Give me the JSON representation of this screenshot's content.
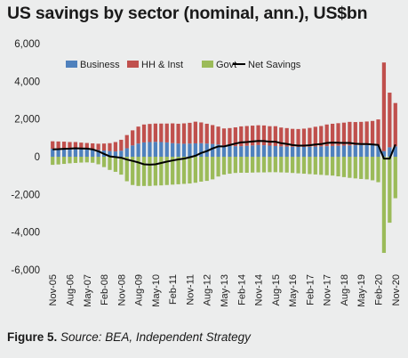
{
  "chart_data": {
    "type": "bar",
    "title": "US savings by sector (nominal, ann.), US$bn",
    "xlabel": "",
    "ylabel": "",
    "ylim": [
      -6000,
      6000
    ],
    "yticks": [
      -6000,
      -4000,
      -2000,
      0,
      2000,
      4000,
      6000
    ],
    "ytick_labels": [
      "-6,000",
      "-4,000",
      "-2,000",
      "0",
      "2,000",
      "4,000",
      "6,000"
    ],
    "xtick_labels": [
      "Nov-05",
      "Aug-06",
      "May-07",
      "Feb-08",
      "Nov-08",
      "Aug-09",
      "May-10",
      "Feb-11",
      "Nov-11",
      "Aug-12",
      "May-13",
      "Feb-14",
      "Nov-14",
      "Aug-15",
      "May-16",
      "Feb-17",
      "Nov-17",
      "Aug-18",
      "May-19",
      "Feb-20",
      "Nov-20"
    ],
    "categories": [
      "Q4-05",
      "Q1-06",
      "Q2-06",
      "Q3-06",
      "Q4-06",
      "Q1-07",
      "Q2-07",
      "Q3-07",
      "Q4-07",
      "Q1-08",
      "Q2-08",
      "Q3-08",
      "Q4-08",
      "Q1-09",
      "Q2-09",
      "Q3-09",
      "Q4-09",
      "Q1-10",
      "Q2-10",
      "Q3-10",
      "Q4-10",
      "Q1-11",
      "Q2-11",
      "Q3-11",
      "Q4-11",
      "Q1-12",
      "Q2-12",
      "Q3-12",
      "Q4-12",
      "Q1-13",
      "Q2-13",
      "Q3-13",
      "Q4-13",
      "Q1-14",
      "Q2-14",
      "Q3-14",
      "Q4-14",
      "Q1-15",
      "Q2-15",
      "Q3-15",
      "Q4-15",
      "Q1-16",
      "Q2-16",
      "Q3-16",
      "Q4-16",
      "Q1-17",
      "Q2-17",
      "Q3-17",
      "Q4-17",
      "Q1-18",
      "Q2-18",
      "Q3-18",
      "Q4-18",
      "Q1-19",
      "Q2-19",
      "Q3-19",
      "Q4-19",
      "Q1-20",
      "Q2-20",
      "Q3-20",
      "Q4-20"
    ],
    "legend_position": "top",
    "grid": false,
    "series": [
      {
        "name": "Business",
        "type": "bar",
        "color": "#4f81bd",
        "values": [
          420,
          430,
          440,
          430,
          420,
          410,
          400,
          390,
          360,
          330,
          300,
          280,
          320,
          450,
          600,
          700,
          760,
          780,
          790,
          780,
          760,
          720,
          700,
          690,
          700,
          710,
          720,
          700,
          680,
          650,
          600,
          570,
          560,
          560,
          580,
          600,
          620,
          610,
          590,
          570,
          550,
          540,
          530,
          520,
          520,
          530,
          540,
          550,
          560,
          570,
          580,
          590,
          600,
          610,
          620,
          620,
          620,
          580,
          300,
          500,
          550
        ]
      },
      {
        "name": "HH & Inst",
        "type": "bar",
        "color": "#c0504d",
        "values": [
          400,
          380,
          360,
          350,
          360,
          340,
          330,
          320,
          330,
          370,
          420,
          500,
          580,
          700,
          800,
          900,
          950,
          960,
          970,
          980,
          1000,
          1050,
          1050,
          1080,
          1100,
          1150,
          1100,
          1050,
          1000,
          950,
          900,
          950,
          1000,
          1050,
          1050,
          1050,
          1050,
          1050,
          1030,
          1050,
          1000,
          980,
          950,
          950,
          970,
          1000,
          1050,
          1080,
          1150,
          1180,
          1200,
          1220,
          1250,
          1230,
          1230,
          1250,
          1280,
          1400,
          4700,
          2900,
          2300
        ]
      },
      {
        "name": "Govt",
        "type": "bar",
        "color": "#9bbb59",
        "values": [
          -430,
          -410,
          -380,
          -350,
          -330,
          -310,
          -300,
          -320,
          -400,
          -550,
          -700,
          -800,
          -950,
          -1300,
          -1500,
          -1550,
          -1550,
          -1550,
          -1530,
          -1520,
          -1500,
          -1480,
          -1460,
          -1440,
          -1420,
          -1380,
          -1320,
          -1280,
          -1200,
          -1050,
          -950,
          -900,
          -860,
          -850,
          -850,
          -840,
          -830,
          -830,
          -820,
          -820,
          -830,
          -840,
          -860,
          -880,
          -900,
          -920,
          -940,
          -960,
          -980,
          -1000,
          -1040,
          -1080,
          -1120,
          -1150,
          -1180,
          -1200,
          -1250,
          -1350,
          -5100,
          -3500,
          -2200
        ]
      },
      {
        "name": "Net Savings",
        "type": "line",
        "color": "#000000",
        "values": [
          390,
          400,
          420,
          430,
          450,
          440,
          430,
          390,
          290,
          150,
          20,
          -20,
          -50,
          -150,
          -220,
          -300,
          -400,
          -420,
          -400,
          -330,
          -260,
          -200,
          -140,
          -100,
          -30,
          50,
          200,
          300,
          440,
          550,
          550,
          620,
          700,
          760,
          780,
          810,
          840,
          830,
          800,
          800,
          720,
          680,
          620,
          590,
          590,
          610,
          650,
          670,
          730,
          750,
          740,
          730,
          730,
          690,
          670,
          670,
          650,
          630,
          -100,
          -100,
          650
        ]
      }
    ]
  },
  "caption": {
    "label": "Figure 5.",
    "source": "Source: BEA, Independent Strategy"
  }
}
